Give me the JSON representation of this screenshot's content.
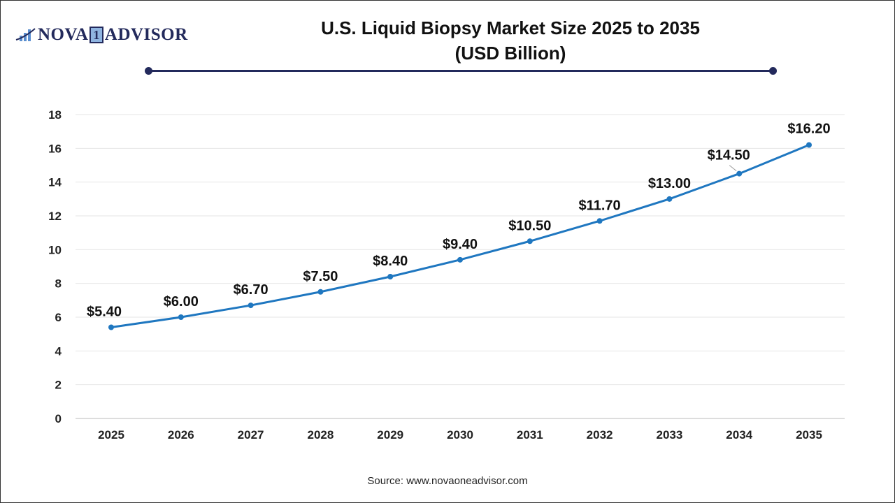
{
  "logo": {
    "text_left": "NOVA",
    "text_mid": "1",
    "text_right": "ADVISOR"
  },
  "title_line1": "U.S. Liquid Biopsy Market Size 2025 to 2035",
  "title_line2": "(USD Billion)",
  "source": "Source: www.novaoneadvisor.com",
  "colors": {
    "line": "#1f77c0",
    "brand": "#232a5c"
  },
  "chart_data": {
    "type": "line",
    "title": "U.S. Liquid Biopsy Market Size 2025 to 2035 (USD Billion)",
    "categories": [
      "2025",
      "2026",
      "2027",
      "2028",
      "2029",
      "2030",
      "2031",
      "2032",
      "2033",
      "2034",
      "2035"
    ],
    "values": [
      5.4,
      6.0,
      6.7,
      7.5,
      8.4,
      9.4,
      10.5,
      11.7,
      13.0,
      14.5,
      16.2
    ],
    "data_labels": [
      "$5.40",
      "$6.00",
      "$6.70",
      "$7.50",
      "$8.40",
      "$9.40",
      "$10.50",
      "$11.70",
      "$13.00",
      "$14.50",
      "$16.20"
    ],
    "yticks": [
      "0",
      "2",
      "4",
      "6",
      "8",
      "10",
      "12",
      "14",
      "16",
      "18"
    ],
    "ylim": [
      0,
      18
    ],
    "grid": true,
    "legend": "none"
  }
}
